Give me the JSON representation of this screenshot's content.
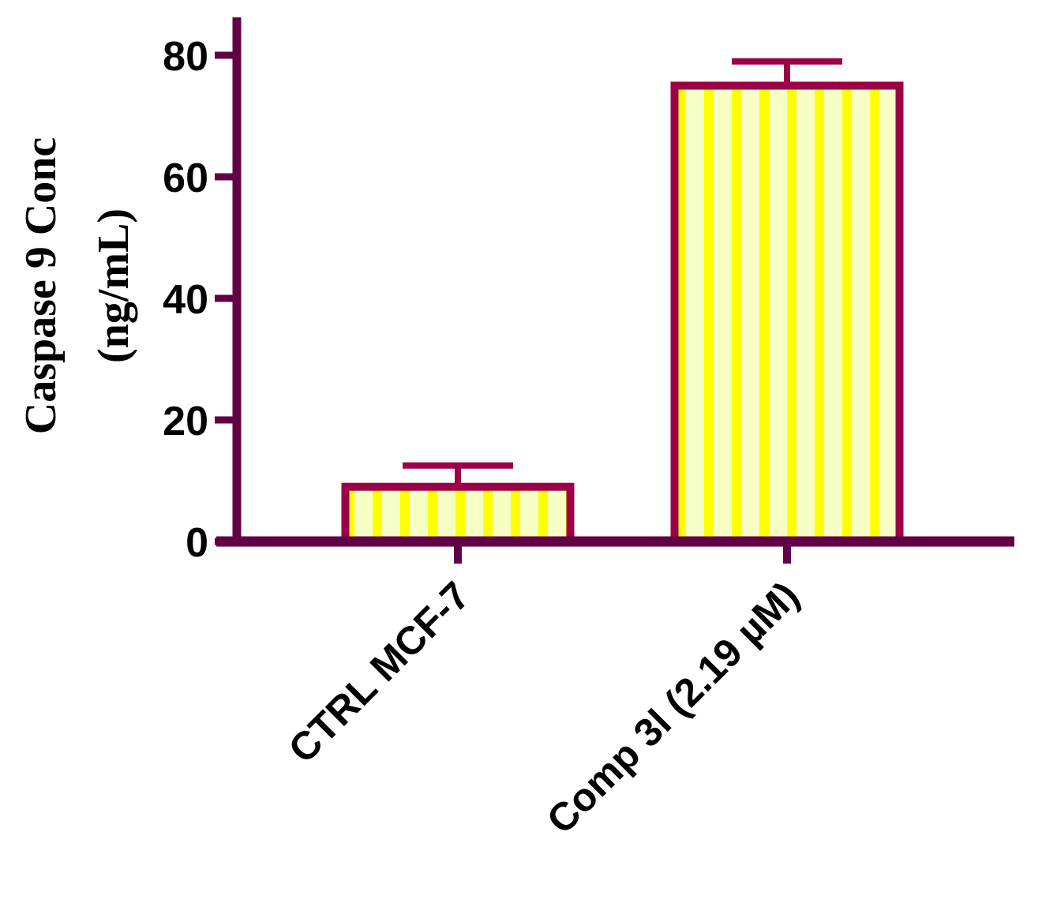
{
  "chart_data": {
    "type": "bar",
    "title": "",
    "ylabel_line1": "Caspase 9 Conc",
    "ylabel_line2": "(ng/mL)",
    "xlabel": "",
    "categories": [
      "CTRL MCF-7",
      "Comp 3l (2.19 µM)"
    ],
    "values": [
      9,
      75
    ],
    "errors": [
      3.5,
      4
    ],
    "ylim": [
      0,
      85
    ],
    "yticks": [
      0,
      20,
      40,
      60,
      80
    ],
    "ytick_labels": [
      "0",
      "20",
      "40",
      "60",
      "80"
    ],
    "grid": false,
    "legend": "none"
  },
  "colors": {
    "axis": "#620046",
    "bar_border": "#9b0048",
    "stripe_light": "#f6ffc4",
    "stripe_bright": "#ffff00",
    "text": "#000000"
  }
}
